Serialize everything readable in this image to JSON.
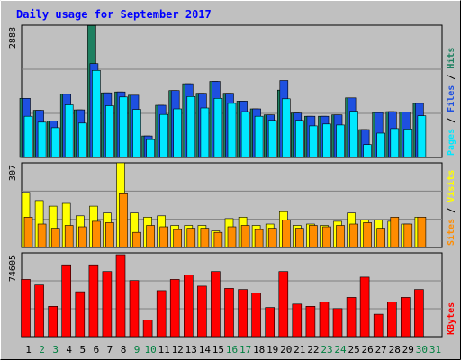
{
  "chart_data": [
    {
      "type": "bar",
      "title": "Daily usage for September 2017",
      "categories": [
        "1",
        "2",
        "3",
        "4",
        "5",
        "6",
        "7",
        "8",
        "9",
        "10",
        "11",
        "12",
        "13",
        "14",
        "15",
        "16",
        "17",
        "18",
        "19",
        "20",
        "21",
        "22",
        "23",
        "24",
        "25",
        "26",
        "27",
        "28",
        "29",
        "30",
        "31"
      ],
      "weekend_days": [
        "2",
        "3",
        "9",
        "10",
        "16",
        "17",
        "23",
        "24",
        "30",
        "31"
      ],
      "ymax_label": "2888",
      "ylim": [
        0,
        2888
      ],
      "right_label": [
        "Pages",
        "Files",
        "Hits"
      ],
      "right_label_sep": " / ",
      "series": [
        {
          "name": "Hits",
          "color": "#1e8060",
          "values": [
            1290,
            1030,
            800,
            1380,
            1040,
            2880,
            1410,
            1430,
            1360,
            470,
            1140,
            1460,
            1610,
            1400,
            1660,
            1400,
            1230,
            1060,
            930,
            1470,
            970,
            900,
            900,
            930,
            1300,
            610,
            980,
            1000,
            990,
            1180,
            0
          ]
        },
        {
          "name": "Files",
          "color": "#1e50e0",
          "values": [
            1290,
            1030,
            800,
            1380,
            1040,
            2050,
            1410,
            1430,
            1360,
            470,
            1140,
            1460,
            1610,
            1400,
            1660,
            1400,
            1230,
            1060,
            930,
            1680,
            970,
            900,
            900,
            930,
            1300,
            610,
            980,
            1000,
            990,
            1180,
            0
          ]
        },
        {
          "name": "Pages",
          "color": "#00e8ff",
          "values": [
            900,
            770,
            650,
            1150,
            750,
            1900,
            1130,
            1320,
            1050,
            390,
            940,
            1060,
            1330,
            1080,
            1290,
            1180,
            1000,
            900,
            810,
            1280,
            810,
            690,
            730,
            710,
            1010,
            280,
            530,
            630,
            620,
            910,
            0
          ]
        }
      ]
    },
    {
      "type": "bar",
      "ymax_label": "307",
      "ylim": [
        0,
        307
      ],
      "right_label": [
        "Sites",
        "Visits"
      ],
      "right_label_sep": " / ",
      "series": [
        {
          "name": "Visits",
          "color": "#ffff00",
          "values": [
            200,
            170,
            150,
            160,
            115,
            150,
            125,
            307,
            125,
            110,
            115,
            80,
            80,
            80,
            60,
            105,
            110,
            80,
            85,
            130,
            80,
            85,
            80,
            95,
            125,
            100,
            100,
            95,
            85,
            110,
            0
          ]
        },
        {
          "name": "Sites",
          "color": "#ff8c00",
          "values": [
            110,
            85,
            70,
            80,
            75,
            95,
            90,
            195,
            55,
            80,
            75,
            65,
            70,
            70,
            55,
            75,
            80,
            65,
            70,
            100,
            70,
            80,
            75,
            80,
            85,
            90,
            70,
            110,
            85,
            110,
            0
          ]
        }
      ]
    },
    {
      "type": "bar",
      "ymax_label": "74605",
      "ylim": [
        0,
        74605
      ],
      "right_label": [
        "KBytes"
      ],
      "right_label_sep": "",
      "series": [
        {
          "name": "KBytes",
          "color": "#ff0000",
          "values": [
            51000,
            46000,
            27000,
            64000,
            40000,
            64000,
            58000,
            73000,
            50000,
            15000,
            41000,
            51000,
            55000,
            45000,
            58000,
            43000,
            42000,
            39000,
            26000,
            58000,
            29000,
            27000,
            31000,
            25000,
            35000,
            53000,
            20000,
            31000,
            35000,
            42000,
            0
          ]
        }
      ]
    }
  ]
}
